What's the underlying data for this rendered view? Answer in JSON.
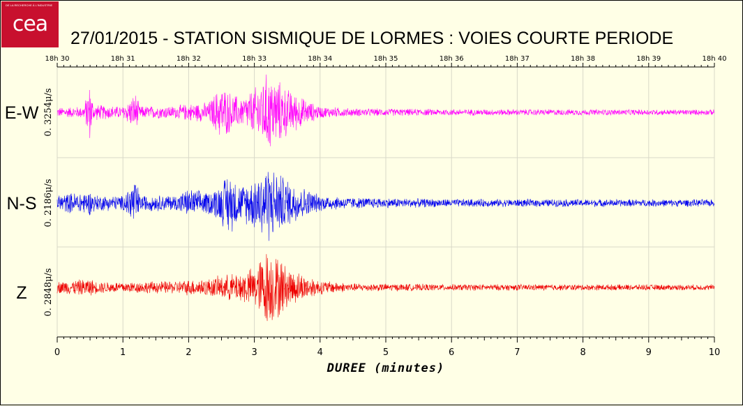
{
  "logo": {
    "small_text": "DE LA RECHERCHE À L'INDUSTRIE",
    "word": "cea"
  },
  "title": "27/01/2015  -  STATION SISMIQUE DE LORMES : VOIES COURTE PERIODE",
  "chart_data": {
    "type": "line",
    "title": "27/01/2015  -  STATION SISMIQUE DE LORMES : VOIES COURTE PERIODE",
    "xlabel": "DUREE (minutes)",
    "xlim": [
      0,
      10
    ],
    "x_ticks": [
      "0",
      "1",
      "2",
      "3",
      "4",
      "5",
      "6",
      "7",
      "8",
      "9",
      "10"
    ],
    "top_axis_ticks": [
      "18h 30",
      "18h 31",
      "18h 32",
      "18h 33",
      "18h 34",
      "18h 35",
      "18h 36",
      "18h 37",
      "18h 38",
      "18h 39",
      "18h 40"
    ],
    "grid": true,
    "series": [
      {
        "name": "E-W",
        "amplitude_label": "0. 3254μ/s",
        "color": "#ff00ff",
        "envelope": {
          "t": [
            0,
            0.4,
            0.5,
            0.55,
            1.0,
            1.2,
            1.25,
            1.8,
            2.0,
            2.3,
            2.5,
            2.6,
            2.8,
            3.0,
            3.2,
            3.3,
            3.5,
            3.8,
            4.0,
            4.5,
            6.0,
            10.0
          ],
          "a": [
            0.12,
            0.15,
            0.75,
            0.2,
            0.15,
            0.5,
            0.16,
            0.16,
            0.22,
            0.25,
            0.7,
            0.55,
            0.35,
            0.6,
            1.0,
            0.9,
            0.6,
            0.3,
            0.15,
            0.1,
            0.08,
            0.07
          ]
        }
      },
      {
        "name": "N-S",
        "amplitude_label": "0. 2186μ/s",
        "color": "#0000ee",
        "envelope": {
          "t": [
            0,
            0.5,
            0.6,
            1.0,
            1.2,
            1.25,
            1.8,
            2.0,
            2.3,
            2.5,
            2.6,
            2.8,
            3.0,
            3.2,
            3.3,
            3.5,
            3.8,
            4.0,
            4.5,
            6.0,
            10.0
          ],
          "a": [
            0.22,
            0.3,
            0.2,
            0.18,
            0.7,
            0.2,
            0.2,
            0.35,
            0.28,
            0.5,
            0.8,
            0.45,
            0.65,
            1.0,
            0.85,
            0.6,
            0.35,
            0.2,
            0.14,
            0.1,
            0.09
          ]
        }
      },
      {
        "name": "Z",
        "amplitude_label": "0. 2848μ/s",
        "color": "#ee0000",
        "envelope": {
          "t": [
            0,
            0.5,
            0.6,
            1.0,
            1.8,
            2.0,
            2.3,
            2.5,
            2.7,
            3.0,
            3.2,
            3.3,
            3.4,
            3.5,
            3.8,
            4.0,
            4.5,
            6.0,
            10.0
          ],
          "a": [
            0.15,
            0.22,
            0.15,
            0.14,
            0.16,
            0.2,
            0.22,
            0.3,
            0.35,
            0.5,
            1.0,
            0.85,
            0.75,
            0.5,
            0.3,
            0.18,
            0.1,
            0.08,
            0.07
          ]
        }
      }
    ]
  }
}
